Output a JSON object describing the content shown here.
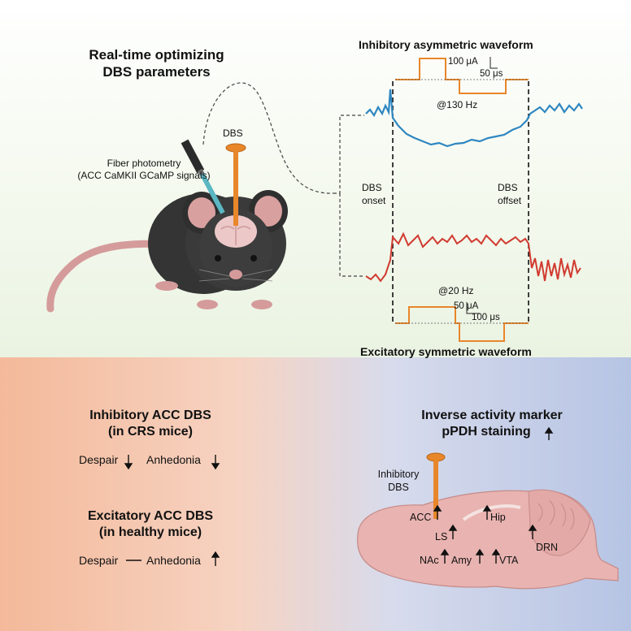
{
  "top": {
    "heading_line1": "Real-time optimizing",
    "heading_line2": "DBS parameters",
    "fiber_line1": "Fiber photometry",
    "fiber_line2": "(ACC CaMKII GCaMP signals)",
    "dbs_label": "DBS",
    "inhib_waveform_title": "Inhibitory asymmetric waveform",
    "inhib_amp": "100 μA",
    "inhib_width": "50 μs",
    "inhib_freq": "@130 Hz",
    "onset_line1": "DBS",
    "onset_line2": "onset",
    "offset_line1": "DBS",
    "offset_line2": "offset",
    "excit_freq": "@20 Hz",
    "excit_amp": "50 μA",
    "excit_width": "100 μs",
    "excit_waveform_title": "Excitatory symmetric waveform"
  },
  "bottom_left": {
    "inhib_title_line1": "Inhibitory ACC DBS",
    "inhib_title_line2": "(in CRS mice)",
    "inhib_despair": "Despair",
    "inhib_anhedonia": "Anhedonia",
    "excit_title_line1": "Excitatory ACC DBS",
    "excit_title_line2": "(in healthy mice)",
    "excit_despair": "Despair",
    "excit_anhedonia": "Anhedonia"
  },
  "bottom_right": {
    "title_line1": "Inverse activity marker",
    "title_line2": "pPDH staining",
    "dbs_line1": "Inhibitory",
    "dbs_line2": "DBS",
    "regions": {
      "acc": "ACC",
      "ls": "LS",
      "hip": "Hip",
      "drn": "DRN",
      "nac": "NAc",
      "amy": "Amy",
      "vta": "VTA"
    }
  },
  "colors": {
    "electrode": "#e8862a",
    "blue_trace": "#2e86c1",
    "red_trace": "#d13a30",
    "mouse_body": "#3a3a3a",
    "ear_pink": "#d9a0a0",
    "brain_pink": "#e8b3b0"
  }
}
